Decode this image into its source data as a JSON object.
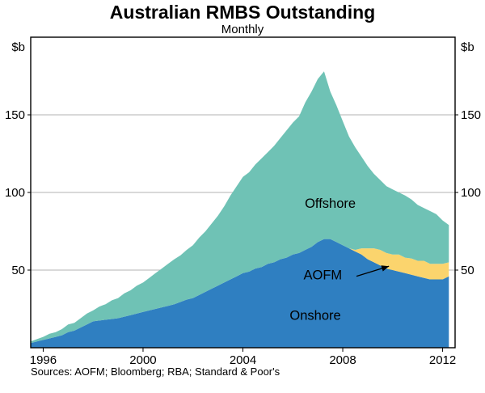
{
  "header": {
    "title": "Australian RMBS Outstanding",
    "subtitle": "Monthly"
  },
  "footer": {
    "sources": "Sources: AOFM; Bloomberg; RBA; Standard & Poor's"
  },
  "axes": {
    "left_unit": "$b",
    "right_unit": "$b",
    "y_ticks": [
      50,
      100,
      150
    ],
    "x_ticks": [
      1996,
      2000,
      2004,
      2008,
      2012
    ]
  },
  "colors": {
    "onshore": "#2f7fc1",
    "aofm": "#fbd46d",
    "offshore": "#6fc2b5",
    "grid": "#b3b3b3",
    "axis": "#000000"
  },
  "chart_data": {
    "type": "area",
    "stacked": true,
    "title": "Australian RMBS Outstanding",
    "subtitle": "Monthly",
    "ylabel": "$b",
    "xlim": [
      1995.5,
      2012.5
    ],
    "ylim": [
      0,
      200
    ],
    "x": [
      1995.5,
      1995.75,
      1996.0,
      1996.25,
      1996.5,
      1996.75,
      1997.0,
      1997.25,
      1997.5,
      1997.75,
      1998.0,
      1998.25,
      1998.5,
      1998.75,
      1999.0,
      1999.25,
      1999.5,
      1999.75,
      2000.0,
      2000.25,
      2000.5,
      2000.75,
      2001.0,
      2001.25,
      2001.5,
      2001.75,
      2002.0,
      2002.25,
      2002.5,
      2002.75,
      2003.0,
      2003.25,
      2003.5,
      2003.75,
      2004.0,
      2004.25,
      2004.5,
      2004.75,
      2005.0,
      2005.25,
      2005.5,
      2005.75,
      2006.0,
      2006.25,
      2006.5,
      2006.75,
      2007.0,
      2007.25,
      2007.5,
      2007.75,
      2008.0,
      2008.25,
      2008.5,
      2008.75,
      2009.0,
      2009.25,
      2009.5,
      2009.75,
      2010.0,
      2010.25,
      2010.5,
      2010.75,
      2011.0,
      2011.25,
      2011.5,
      2011.75,
      2012.0,
      2012.25
    ],
    "series": [
      {
        "name": "Onshore",
        "color": "#2f7fc1",
        "values": [
          3,
          4,
          5,
          6,
          7,
          8,
          10,
          11,
          13,
          15,
          17,
          17.5,
          18,
          18.5,
          19,
          20,
          21,
          22,
          23,
          24,
          25,
          26,
          27,
          28,
          29.5,
          31,
          32,
          34,
          36,
          38,
          40,
          42,
          44,
          46,
          48,
          49,
          51,
          52,
          54,
          55,
          57,
          58,
          60,
          61,
          63,
          65,
          68,
          70,
          70,
          68,
          66,
          64,
          62,
          60,
          57,
          55,
          53,
          51,
          50,
          49,
          48,
          47,
          46,
          45,
          44,
          44,
          44,
          46
        ]
      },
      {
        "name": "AOFM",
        "color": "#fbd46d",
        "values": [
          0,
          0,
          0,
          0,
          0,
          0,
          0,
          0,
          0,
          0,
          0,
          0,
          0,
          0,
          0,
          0,
          0,
          0,
          0,
          0,
          0,
          0,
          0,
          0,
          0,
          0,
          0,
          0,
          0,
          0,
          0,
          0,
          0,
          0,
          0,
          0,
          0,
          0,
          0,
          0,
          0,
          0,
          0,
          0,
          0,
          0,
          0,
          0,
          0,
          0,
          0,
          0,
          1,
          4,
          7,
          9,
          10,
          10,
          10,
          11,
          10,
          10.5,
          10,
          11,
          10,
          10,
          10,
          9
        ]
      },
      {
        "name": "Offshore",
        "color": "#6fc2b5",
        "values": [
          1,
          1.5,
          2,
          3,
          3,
          4,
          5,
          5,
          6,
          7,
          7,
          9,
          10,
          12,
          13,
          15,
          16,
          18,
          19,
          21,
          23,
          25,
          27,
          29,
          30,
          32,
          34,
          37,
          39,
          42,
          45,
          49,
          54,
          58,
          62,
          64,
          67,
          70,
          72,
          75,
          78,
          82,
          85,
          88,
          95,
          100,
          105,
          108,
          95,
          88,
          80,
          72,
          66,
          59,
          53,
          48,
          45,
          43,
          42,
          40,
          40,
          38,
          36,
          34,
          34,
          32,
          28,
          24
        ]
      }
    ],
    "annotations": [
      {
        "text": "Offshore",
        "x": 2007.5,
        "y": 90
      },
      {
        "text": "Onshore",
        "x": 2006.9,
        "y": 18
      },
      {
        "text": "AOFM",
        "x": 2007.2,
        "y": 44,
        "arrow": {
          "x1": 2008.55,
          "y1": 46,
          "x2": 2009.85,
          "y2": 52.5
        }
      }
    ]
  }
}
